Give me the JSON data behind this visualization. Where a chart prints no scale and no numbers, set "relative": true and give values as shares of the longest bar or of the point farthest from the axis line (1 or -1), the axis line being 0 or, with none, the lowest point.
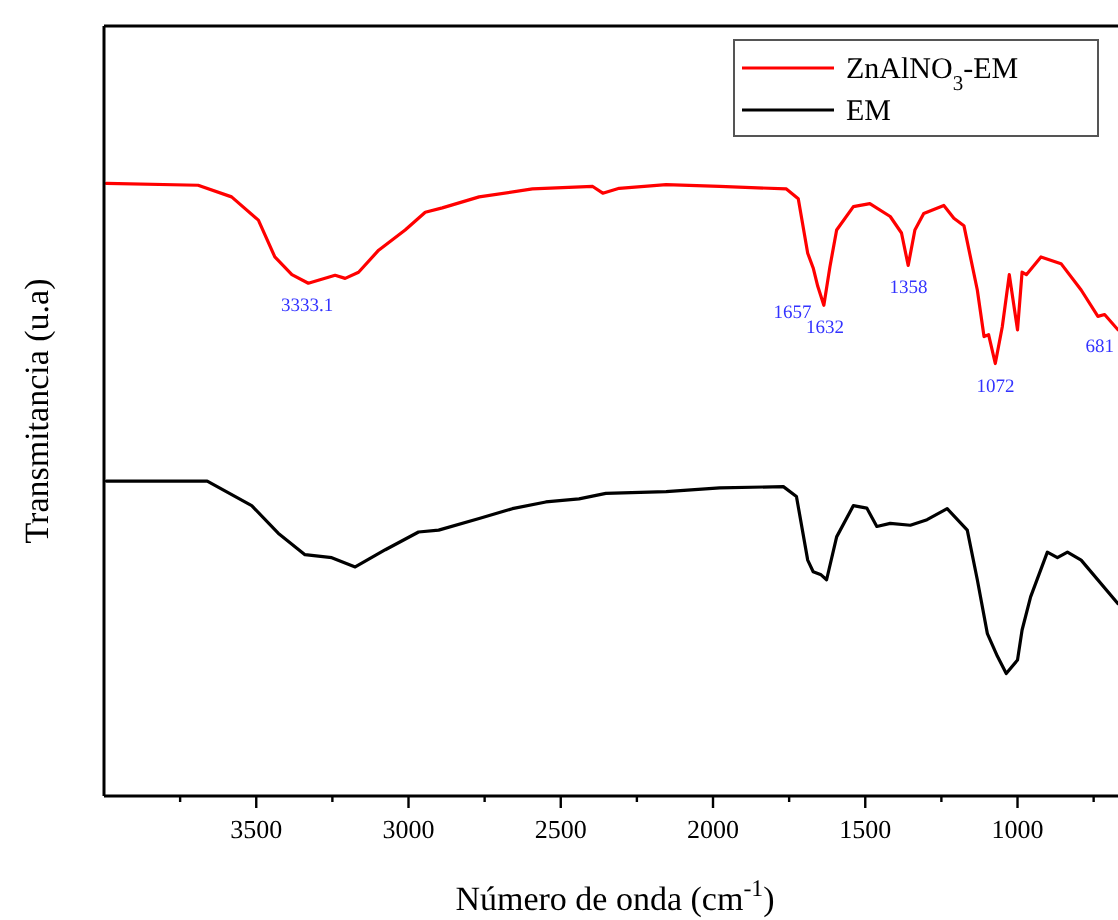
{
  "chart_data": {
    "type": "line",
    "relative": true,
    "xlabel": "Número de onda (cm$^{-1}$)",
    "ylabel": "Transmitancia (u.a)",
    "xlim": [
      4000,
      670
    ],
    "xticks": [
      {
        "value": 3750,
        "label": null
      },
      3500,
      {
        "value": 3250,
        "label": null
      },
      3000,
      {
        "value": 2750,
        "label": null
      },
      2500,
      {
        "value": 2250,
        "label": null
      },
      2000,
      {
        "value": 1750,
        "label": null
      },
      1500,
      {
        "value": 1250,
        "label": null
      },
      1000,
      {
        "value": 750,
        "label": null
      }
    ],
    "legend": "top right",
    "line_style": "solid",
    "series": [
      {
        "name": "ZnAlNO$_{3}$-EM",
        "color": "#ff0000",
        "x": [
          3992,
          3691,
          3581,
          3493,
          3439,
          3383,
          3329,
          3241,
          3208,
          3164,
          3098,
          3011,
          2945,
          2889,
          2768,
          2593,
          2395,
          2362,
          2308,
          2154,
          1978,
          1759,
          1720,
          1689,
          1671,
          1656,
          1636,
          1616,
          1594,
          1539,
          1485,
          1418,
          1381,
          1359,
          1337,
          1308,
          1242,
          1209,
          1176,
          1132,
          1110,
          1095,
          1073,
          1050,
          1027,
          1000,
          985,
          971,
          923,
          857,
          791,
          736,
          714,
          670
        ],
        "values": [
          1.0,
          0.997,
          0.978,
          0.94,
          0.88,
          0.851,
          0.837,
          0.85,
          0.845,
          0.855,
          0.891,
          0.924,
          0.953,
          0.96,
          0.978,
          0.991,
          0.995,
          0.984,
          0.992,
          0.998,
          0.995,
          0.991,
          0.975,
          0.886,
          0.862,
          0.832,
          0.801,
          0.864,
          0.924,
          0.962,
          0.967,
          0.946,
          0.919,
          0.866,
          0.924,
          0.951,
          0.964,
          0.943,
          0.931,
          0.826,
          0.75,
          0.753,
          0.706,
          0.766,
          0.851,
          0.761,
          0.855,
          0.851,
          0.88,
          0.869,
          0.826,
          0.783,
          0.786,
          0.761
        ]
      },
      {
        "name": "EM",
        "color": "#000000",
        "x": [
          3992,
          3661,
          3515,
          3428,
          3340,
          3252,
          3175,
          3076,
          2967,
          2901,
          2768,
          2659,
          2549,
          2440,
          2352,
          2154,
          1978,
          1769,
          1726,
          1689,
          1671,
          1645,
          1627,
          1594,
          1539,
          1495,
          1462,
          1418,
          1352,
          1297,
          1231,
          1165,
          1132,
          1099,
          1066,
          1037,
          1000,
          985,
          957,
          902,
          869,
          836,
          791,
          670
        ],
        "values": [
          0.514,
          0.514,
          0.474,
          0.429,
          0.394,
          0.389,
          0.374,
          0.402,
          0.431,
          0.434,
          0.453,
          0.469,
          0.48,
          0.485,
          0.494,
          0.497,
          0.503,
          0.505,
          0.489,
          0.385,
          0.366,
          0.361,
          0.353,
          0.423,
          0.474,
          0.47,
          0.44,
          0.445,
          0.442,
          0.451,
          0.469,
          0.434,
          0.353,
          0.265,
          0.228,
          0.2,
          0.222,
          0.271,
          0.325,
          0.398,
          0.389,
          0.398,
          0.385,
          0.314
        ]
      }
    ],
    "annotations": [
      {
        "text": "3333.1",
        "x": 3333.1,
        "y": 0.837
      },
      {
        "text": "1657",
        "x": 1657,
        "y": 0.832
      },
      {
        "text": "1632",
        "x": 1632,
        "y": 0.801
      },
      {
        "text": "1358",
        "x": 1358,
        "y": 0.866
      },
      {
        "text": "1072",
        "x": 1072,
        "y": 0.706
      },
      {
        "text": "681",
        "x": 681,
        "y": 0.77
      }
    ]
  }
}
